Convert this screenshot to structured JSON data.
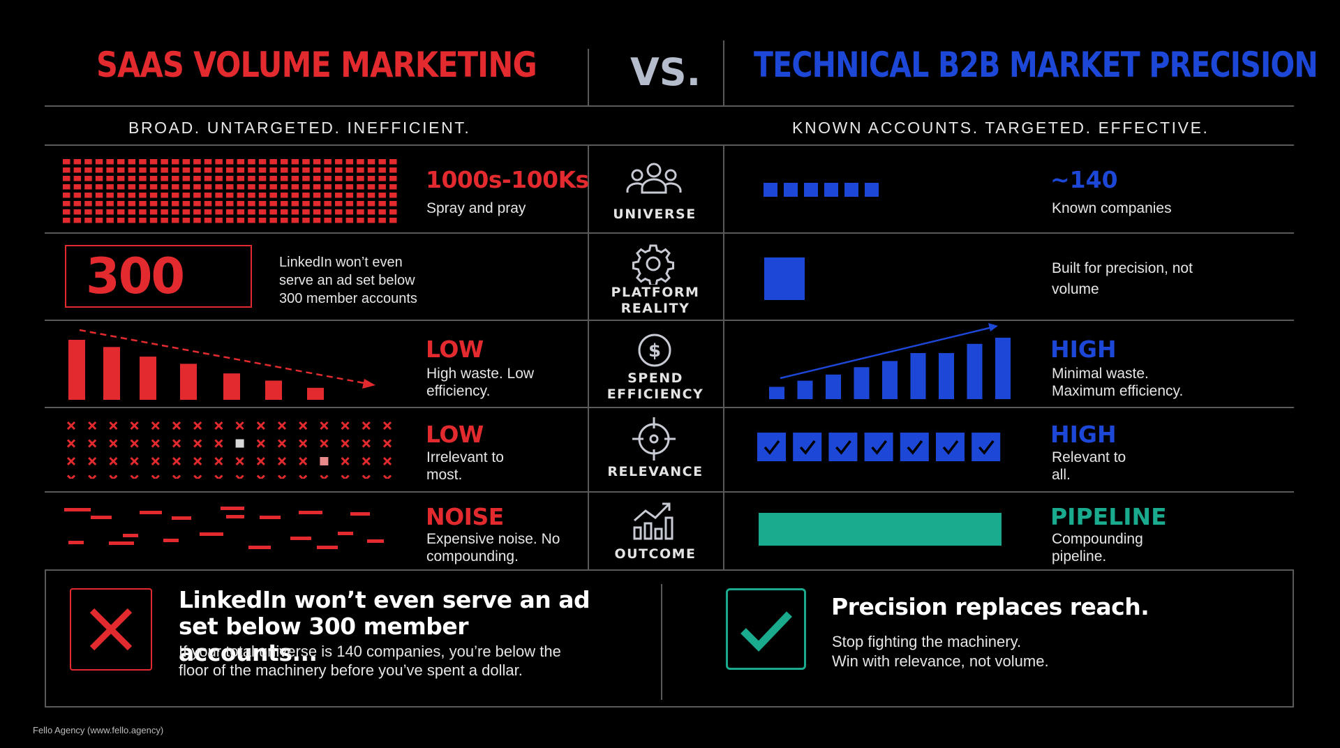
{
  "header": {
    "left_title": "SAAS VOLUME MARKETING",
    "vs": "VS.",
    "right_title": "TECHNICAL B2B MARKET PRECISION",
    "left_subtitle": "BROAD. UNTARGETED. INEFFICIENT.",
    "right_subtitle": "KNOWN ACCOUNTS. TARGETED. EFFECTIVE."
  },
  "rows": [
    {
      "category": "UNIVERSE",
      "icon": "people-icon",
      "left": {
        "stat": "1000s-100Ks",
        "desc": "Spray and pray"
      },
      "right": {
        "stat": "~140",
        "desc": "Known companies"
      }
    },
    {
      "category": "PLATFORM REALITY",
      "icon": "gear-icon",
      "left": {
        "stat": "300",
        "desc": "LinkedIn won’t even serve an ad set below 300 member accounts"
      },
      "right": {
        "stat": "",
        "desc": "Built for precision, not volume"
      }
    },
    {
      "category": "SPEND EFFICIENCY",
      "icon": "dollar-icon",
      "left": {
        "stat": "LOW",
        "desc": "High waste. Low efficiency."
      },
      "right": {
        "stat": "HIGH",
        "desc": "Minimal waste. Maximum efficiency."
      }
    },
    {
      "category": "RELEVANCE",
      "icon": "target-icon",
      "left": {
        "stat": "LOW",
        "desc": "Irrelevant to most."
      },
      "right": {
        "stat": "HIGH",
        "desc": "Relevant to all."
      }
    },
    {
      "category": "OUTCOME",
      "icon": "growth-chart-icon",
      "left": {
        "stat": "NOISE",
        "desc": "Expensive noise. No compounding."
      },
      "right": {
        "stat": "PIPELINE",
        "desc": "Compounding pipeline."
      }
    }
  ],
  "bottom": {
    "left_heading": "LinkedIn won’t even serve an ad set below 300 member accounts...",
    "left_body": "If your total universe is 140 companies, you’re below the floor of the machinery before you’ve spent a dollar.",
    "right_heading": "Precision replaces reach.",
    "right_body_1": "Stop fighting the machinery.",
    "right_body_2": "Win with relevance, not volume."
  },
  "footer": "Fello Agency (www.fello.agency)",
  "colors": {
    "red": "#e32b2f",
    "blue": "#1d47d6",
    "teal": "#1aaa8e",
    "background": "#000000",
    "grid_line": "#5a5a5a"
  },
  "visuals": {
    "spend_bars_left_relative": [
      1.0,
      0.88,
      0.72,
      0.6,
      0.44,
      0.32,
      0.2
    ],
    "spend_bars_right_relative": [
      0.2,
      0.3,
      0.4,
      0.52,
      0.62,
      0.75,
      0.75,
      0.9,
      1.0
    ],
    "universe_right_squares": 6,
    "relevance_checks": 7
  }
}
